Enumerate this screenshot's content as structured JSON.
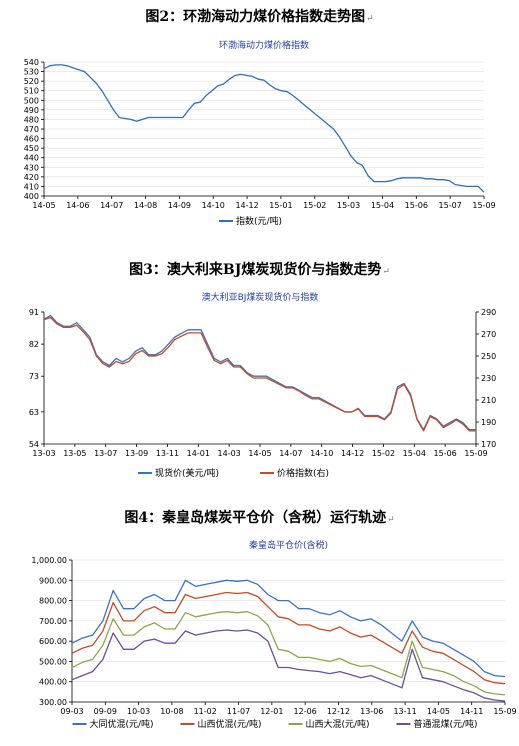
{
  "headings": {
    "fig2": "图2：环渤海动力煤价格指数走势图",
    "fig3": "图3：澳大利来BJ煤炭现货价与指数走势",
    "fig4": "图4：秦皇岛煤炭平仓价（含税）运行轨迹"
  },
  "chart_data": [
    {
      "type": "line",
      "title": "环渤海动力煤价格指数",
      "ylim": [
        400,
        540
      ],
      "yticks": [
        "400",
        "410",
        "420",
        "430",
        "440",
        "450",
        "460",
        "470",
        "480",
        "490",
        "500",
        "510",
        "520",
        "530",
        "540"
      ],
      "xticks": [
        "14-05",
        "14-06",
        "14-07",
        "14-08",
        "14-09",
        "14-10",
        "14-12",
        "15-01",
        "15-02",
        "15-03",
        "15-04",
        "15-06",
        "15-07",
        "15-09"
      ],
      "series": [
        {
          "name": "指数(元/吨)",
          "color": "#2d6fc1",
          "values": [
            533,
            536,
            537,
            537,
            536,
            534,
            532,
            530,
            524,
            518,
            510,
            500,
            490,
            482,
            481,
            480,
            478,
            480,
            482,
            482,
            482,
            482,
            482,
            482,
            482,
            490,
            497,
            498,
            505,
            510,
            515,
            517,
            522,
            526,
            527,
            526,
            525,
            522,
            521,
            516,
            512,
            510,
            509,
            505,
            500,
            495,
            490,
            485,
            480,
            475,
            470,
            462,
            452,
            442,
            435,
            432,
            421,
            415,
            415,
            415,
            416,
            418,
            419,
            419,
            419,
            419,
            418,
            418,
            417,
            417,
            416,
            412,
            411,
            410,
            410,
            410,
            404
          ]
        }
      ],
      "grid": true,
      "legend": "bottom"
    },
    {
      "type": "line",
      "title": "澳大利亚BJ煤炭现货价与指数",
      "ylim_left": [
        54,
        91
      ],
      "ylim_right": [
        170,
        290
      ],
      "yticks_left": [
        "54",
        "63",
        "73",
        "82",
        "91"
      ],
      "yticks_right": [
        "170",
        "190",
        "210",
        "230",
        "250",
        "270",
        "290"
      ],
      "xticks": [
        "13-03",
        "13-05",
        "13-07",
        "13-09",
        "13-11",
        "14-01",
        "14-03",
        "14-05",
        "14-07",
        "14-10",
        "14-12",
        "15-02",
        "15-04",
        "15-06",
        "15-09"
      ],
      "series": [
        {
          "name": "现货价(美元/吨)",
          "color": "#3a73c6",
          "axis": "left",
          "values": [
            89,
            90,
            88,
            87,
            87,
            88,
            86,
            84,
            79,
            77,
            76,
            78,
            77,
            78,
            80,
            81,
            79,
            79,
            80,
            82,
            84,
            85,
            86,
            86,
            86,
            82,
            78,
            77,
            78,
            76,
            76,
            74,
            73,
            73,
            73,
            72,
            71,
            70,
            70,
            69,
            68,
            67,
            67,
            66,
            65,
            64,
            63,
            63,
            64,
            62,
            62,
            62,
            61,
            63,
            70,
            71,
            68,
            61,
            58,
            62,
            61,
            59,
            60,
            61,
            60,
            58,
            58
          ]
        },
        {
          "name": "价格指数(右)",
          "color": "#c84a22",
          "axis": "right",
          "values": [
            283,
            285,
            279,
            276,
            276,
            278,
            272,
            265,
            250,
            243,
            240,
            245,
            243,
            245,
            252,
            255,
            250,
            250,
            252,
            258,
            265,
            268,
            271,
            271,
            271,
            258,
            246,
            243,
            246,
            240,
            240,
            234,
            230,
            230,
            230,
            227,
            224,
            221,
            221,
            218,
            214,
            211,
            211,
            208,
            205,
            202,
            199,
            199,
            202,
            195,
            195,
            195,
            192,
            198,
            220,
            224,
            214,
            192,
            182,
            195,
            192,
            185,
            188,
            192,
            188,
            182,
            182
          ]
        }
      ],
      "legend": "bottom"
    },
    {
      "type": "line",
      "title": "秦皇岛平仓价(含税)",
      "ylim": [
        300,
        1000
      ],
      "yticks": [
        "300.00",
        "400.00",
        "500.00",
        "600.00",
        "700.00",
        "800.00",
        "900.00",
        "1,000.00"
      ],
      "xticks": [
        "09-03",
        "09-09",
        "10-03",
        "10-08",
        "11-02",
        "11-07",
        "12-01",
        "12-06",
        "12-12",
        "13-06",
        "13-11",
        "14-05",
        "14-11",
        "15-09"
      ],
      "series": [
        {
          "name": "大同优混(元/吨)",
          "color": "#3a73c6",
          "values": [
            590,
            615,
            630,
            700,
            850,
            760,
            760,
            810,
            830,
            800,
            800,
            900,
            870,
            880,
            890,
            900,
            895,
            900,
            880,
            830,
            800,
            800,
            760,
            760,
            740,
            730,
            750,
            720,
            700,
            710,
            680,
            640,
            600,
            700,
            620,
            600,
            590,
            560,
            530,
            500,
            450,
            430,
            425
          ]
        },
        {
          "name": "山西优混(元/吨)",
          "color": "#c84a22",
          "values": [
            540,
            565,
            580,
            650,
            790,
            700,
            700,
            750,
            770,
            740,
            740,
            830,
            810,
            820,
            830,
            840,
            835,
            840,
            820,
            770,
            720,
            710,
            680,
            680,
            660,
            650,
            670,
            640,
            620,
            630,
            600,
            570,
            540,
            650,
            570,
            550,
            540,
            510,
            480,
            450,
            410,
            395,
            390
          ]
        },
        {
          "name": "山西大混(元/吨)",
          "color": "#8aa84a",
          "values": [
            470,
            495,
            510,
            580,
            710,
            630,
            630,
            670,
            690,
            660,
            660,
            740,
            720,
            730,
            740,
            745,
            740,
            745,
            725,
            680,
            560,
            550,
            520,
            520,
            510,
            500,
            515,
            490,
            475,
            480,
            460,
            440,
            420,
            600,
            470,
            460,
            450,
            430,
            400,
            380,
            350,
            340,
            335
          ]
        },
        {
          "name": "普通混煤(元/吨)",
          "color": "#6a4ea0",
          "values": [
            410,
            430,
            450,
            510,
            640,
            560,
            560,
            600,
            610,
            590,
            590,
            650,
            630,
            640,
            650,
            655,
            650,
            655,
            640,
            600,
            470,
            470,
            460,
            455,
            450,
            440,
            450,
            435,
            420,
            430,
            410,
            390,
            370,
            560,
            420,
            410,
            400,
            380,
            360,
            345,
            320,
            310,
            305
          ]
        }
      ],
      "grid": true,
      "legend": "bottom"
    }
  ]
}
